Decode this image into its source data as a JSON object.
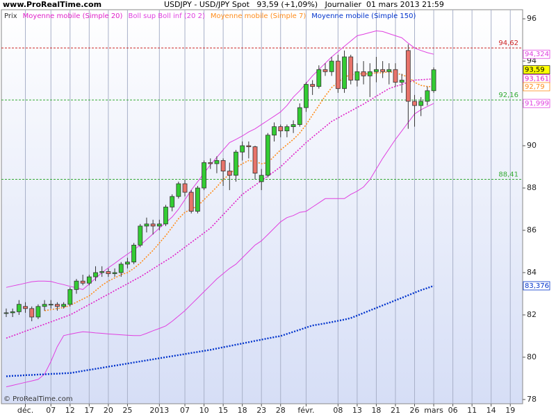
{
  "chart_data": {
    "type": "candlestick",
    "site": "www.ProRealTime.com",
    "title": "USDJPY - USD/JPY Spot   93,59 (+1,09%)   Journalier  01 mars 2013 21:59",
    "copyright": "© ProRealTime.com",
    "ylim": [
      77.8,
      96.43
    ],
    "yticks": [
      78,
      80,
      82,
      84,
      86,
      88,
      90,
      92,
      94,
      96
    ],
    "categories": [
      null,
      null,
      null,
      "déc.",
      null,
      null,
      null,
      "07",
      null,
      null,
      "12",
      null,
      null,
      "17",
      null,
      null,
      "20",
      null,
      null,
      "25",
      null,
      null,
      null,
      null,
      "2013",
      null,
      null,
      null,
      "07",
      null,
      null,
      "10",
      null,
      null,
      "15",
      null,
      null,
      "18",
      null,
      null,
      "23",
      null,
      null,
      "28",
      null,
      null,
      null,
      "févr.",
      null,
      null,
      null,
      null,
      "08",
      null,
      null,
      "13",
      null,
      null,
      "18",
      null,
      null,
      "21",
      null,
      null,
      "26",
      null,
      null,
      "mars",
      null,
      null,
      "06",
      null,
      null,
      "11",
      null,
      null,
      "14",
      null,
      null,
      "19"
    ],
    "candles": {
      "name": "Prix",
      "color": "#333333",
      "up_color": "#33cc33",
      "down_color": "#e8736a",
      "last_label": "93,59",
      "open": [
        82.1,
        82.1,
        82.15,
        82.4,
        82.3,
        81.9,
        82.4,
        82.5,
        82.5,
        82.4,
        82.5,
        83.2,
        83.6,
        83.5,
        83.8,
        84.0,
        84.05,
        83.95,
        84.0,
        84.4,
        84.5,
        85.3,
        86.2,
        86.3,
        86.2,
        86.3,
        87.1,
        87.6,
        88.2,
        87.8,
        86.9,
        88.0,
        89.2,
        89.15,
        89.3,
        88.8,
        88.6,
        89.7,
        90.0,
        89.95,
        88.3,
        88.6,
        90.5,
        90.9,
        90.7,
        90.9,
        91.0,
        91.8,
        92.9,
        92.8,
        93.6,
        93.5,
        94.0,
        92.7,
        94.2,
        93.1,
        93.5,
        93.3,
        93.5,
        93.6,
        93.5,
        93.6,
        93.0,
        94.5,
        92.1,
        91.9,
        92.1,
        92.6,
        null,
        null,
        null,
        null,
        null,
        null,
        null,
        null,
        null,
        null,
        null,
        null
      ],
      "high": [
        82.3,
        82.3,
        82.7,
        82.6,
        82.4,
        82.5,
        82.7,
        82.7,
        82.6,
        82.6,
        83.3,
        83.7,
        83.9,
        83.9,
        84.3,
        84.3,
        84.2,
        84.2,
        84.5,
        84.7,
        85.4,
        86.3,
        86.6,
        86.5,
        86.5,
        87.2,
        87.7,
        88.3,
        88.4,
        87.9,
        88.1,
        89.3,
        89.4,
        89.5,
        89.4,
        89.2,
        89.8,
        90.2,
        90.2,
        90.0,
        88.9,
        90.6,
        91.1,
        91.0,
        91.0,
        91.2,
        92.0,
        93.0,
        93.1,
        93.8,
        93.9,
        94.2,
        94.3,
        94.5,
        94.3,
        93.9,
        94.0,
        93.9,
        94.2,
        94.0,
        93.9,
        93.9,
        93.4,
        94.8,
        92.4,
        92.3,
        92.8,
        93.7,
        null,
        null,
        null,
        null,
        null,
        null,
        null,
        null,
        null,
        null,
        null,
        null
      ],
      "low": [
        81.9,
        81.9,
        82.0,
        82.1,
        81.7,
        81.8,
        82.2,
        82.3,
        82.2,
        82.3,
        82.4,
        83.0,
        83.4,
        83.4,
        83.6,
        83.8,
        83.8,
        83.8,
        83.8,
        84.2,
        84.4,
        85.2,
        85.9,
        85.8,
        86.0,
        86.2,
        86.9,
        87.5,
        87.6,
        86.8,
        86.8,
        87.9,
        88.9,
        88.7,
        88.1,
        87.9,
        88.3,
        89.3,
        89.4,
        88.4,
        87.9,
        88.5,
        90.2,
        90.4,
        90.4,
        90.6,
        90.9,
        91.6,
        92.4,
        92.7,
        93.3,
        93.3,
        92.5,
        92.5,
        92.9,
        92.8,
        92.9,
        92.3,
        93.0,
        93.2,
        92.9,
        92.8,
        92.5,
        90.8,
        90.9,
        91.4,
        91.9,
        92.5,
        null,
        null,
        null,
        null,
        null,
        null,
        null,
        null,
        null,
        null,
        null,
        null
      ],
      "close": [
        82.1,
        82.15,
        82.5,
        82.3,
        81.9,
        82.4,
        82.5,
        82.5,
        82.4,
        82.5,
        83.2,
        83.6,
        83.5,
        83.8,
        84.0,
        84.05,
        83.95,
        84.0,
        84.4,
        84.5,
        85.3,
        86.2,
        86.3,
        86.2,
        86.3,
        87.1,
        87.6,
        88.2,
        87.8,
        86.9,
        88.0,
        89.2,
        89.15,
        89.3,
        88.8,
        88.6,
        89.7,
        90.0,
        89.95,
        88.7,
        88.6,
        90.5,
        90.9,
        90.7,
        90.9,
        91.0,
        91.8,
        92.9,
        92.8,
        93.6,
        93.5,
        94.0,
        92.7,
        94.2,
        93.1,
        93.5,
        93.3,
        93.5,
        93.6,
        93.5,
        93.6,
        93.0,
        93.1,
        92.1,
        91.9,
        92.1,
        92.6,
        93.59,
        null,
        null,
        null,
        null,
        null,
        null,
        null,
        null,
        null,
        null,
        null,
        null
      ]
    },
    "series": [
      {
        "name": "Moyenne mobile (Simple 20)",
        "color": "#e020c8",
        "style": "dotted",
        "last_label": "93,161",
        "values": [
          80.9,
          81.01,
          81.12,
          81.23,
          81.34,
          81.45,
          81.56,
          81.67,
          81.78,
          81.89,
          82.0,
          82.16,
          82.33,
          82.49,
          82.65,
          82.82,
          82.98,
          83.15,
          83.31,
          83.47,
          83.64,
          83.8,
          83.99,
          84.18,
          84.37,
          84.56,
          84.75,
          84.98,
          85.2,
          85.43,
          85.65,
          85.88,
          86.1,
          86.42,
          86.74,
          87.06,
          87.38,
          87.7,
          87.92,
          88.13,
          88.35,
          88.57,
          88.78,
          89.0,
          89.29,
          89.58,
          89.86,
          90.15,
          90.4,
          90.65,
          90.9,
          91.15,
          91.31,
          91.48,
          91.64,
          91.81,
          91.97,
          92.15,
          92.34,
          92.52,
          92.7,
          92.8,
          92.9,
          93.0,
          93.1,
          93.12,
          93.14,
          93.161,
          null,
          null,
          null,
          null,
          null,
          null,
          null,
          null,
          null,
          null,
          null,
          null
        ]
      },
      {
        "name": "Boll sup Boll inf (20 2)",
        "color": "#e040e0",
        "style": "solid",
        "upper_label": "94,324",
        "lower_label": "91,999",
        "upper": [
          83.3,
          83.37,
          83.43,
          83.5,
          83.57,
          83.6,
          83.6,
          83.58,
          83.5,
          83.43,
          83.35,
          83.28,
          83.2,
          83.46,
          83.73,
          84.0,
          84.23,
          84.44,
          84.66,
          84.87,
          85.08,
          85.3,
          85.56,
          85.83,
          86.1,
          86.36,
          86.63,
          87.0,
          87.45,
          87.9,
          88.3,
          88.7,
          89.1,
          89.45,
          89.8,
          90.15,
          90.3,
          90.46,
          90.65,
          90.8,
          91.0,
          91.2,
          91.4,
          91.6,
          91.9,
          92.3,
          92.6,
          92.95,
          93.3,
          93.6,
          93.9,
          94.2,
          94.45,
          94.7,
          94.95,
          95.2,
          95.27,
          95.35,
          95.43,
          95.4,
          95.3,
          95.2,
          95.1,
          94.85,
          94.62,
          94.5,
          94.4,
          94.324,
          null,
          null,
          null,
          null,
          null,
          null,
          null,
          null,
          null,
          null,
          null,
          null
        ],
        "lower": [
          78.6,
          78.67,
          78.74,
          78.81,
          78.88,
          78.95,
          79.2,
          79.8,
          80.5,
          81.02,
          81.09,
          81.15,
          81.2,
          81.18,
          81.15,
          81.13,
          81.1,
          81.08,
          81.06,
          81.04,
          81.02,
          81.02,
          81.13,
          81.25,
          81.36,
          81.48,
          81.7,
          81.95,
          82.2,
          82.5,
          82.8,
          83.1,
          83.4,
          83.7,
          83.95,
          84.2,
          84.4,
          84.7,
          85.0,
          85.3,
          85.5,
          85.8,
          86.1,
          86.4,
          86.6,
          86.7,
          86.85,
          86.9,
          87.1,
          87.3,
          87.5,
          87.5,
          87.5,
          87.5,
          87.7,
          87.85,
          88.05,
          88.4,
          88.9,
          89.4,
          89.85,
          90.3,
          90.7,
          91.1,
          91.5,
          91.7,
          91.85,
          91.999,
          null,
          null,
          null,
          null,
          null,
          null,
          null,
          null,
          null,
          null,
          null,
          null
        ]
      },
      {
        "name": "Moyenne mobile (Simple 7)",
        "color": "#ff8c1a",
        "style": "dotted",
        "last_label": "92,79",
        "values": [
          null,
          null,
          null,
          null,
          null,
          null,
          82.2,
          82.25,
          82.3,
          82.35,
          82.45,
          82.6,
          82.75,
          82.9,
          83.15,
          83.4,
          83.6,
          83.75,
          83.9,
          84.0,
          84.2,
          84.45,
          84.75,
          85.05,
          85.4,
          85.75,
          86.15,
          86.55,
          86.85,
          87.0,
          87.15,
          87.45,
          87.75,
          88.05,
          88.4,
          88.65,
          88.95,
          89.15,
          89.3,
          89.25,
          89.15,
          89.2,
          89.5,
          89.8,
          90.05,
          90.3,
          90.6,
          91.0,
          91.45,
          91.9,
          92.35,
          92.75,
          93.0,
          93.25,
          93.35,
          93.4,
          93.4,
          93.4,
          93.45,
          93.45,
          93.5,
          93.45,
          93.35,
          93.25,
          93.0,
          92.85,
          92.8,
          92.79,
          null,
          null,
          null,
          null,
          null,
          null,
          null,
          null,
          null,
          null,
          null,
          null
        ]
      },
      {
        "name": "Moyenne mobile (Simple 150)",
        "color": "#0033cc",
        "style": "dotted-thick",
        "last_label": "83,376",
        "values": [
          79.1,
          79.12,
          79.13,
          79.15,
          79.16,
          79.18,
          79.19,
          79.21,
          79.22,
          79.24,
          79.25,
          79.3,
          79.35,
          79.4,
          79.45,
          79.5,
          79.55,
          79.6,
          79.65,
          79.7,
          79.75,
          79.8,
          79.85,
          79.9,
          79.95,
          80.0,
          80.05,
          80.1,
          80.15,
          80.2,
          80.25,
          80.3,
          80.35,
          80.41,
          80.47,
          80.53,
          80.59,
          80.65,
          80.71,
          80.77,
          80.83,
          80.89,
          80.95,
          81.0,
          81.1,
          81.2,
          81.3,
          81.4,
          81.5,
          81.55,
          81.6,
          81.66,
          81.72,
          81.78,
          81.85,
          81.97,
          82.09,
          82.21,
          82.33,
          82.45,
          82.57,
          82.69,
          82.81,
          82.93,
          83.05,
          83.17,
          83.27,
          83.376,
          null,
          null,
          null,
          null,
          null,
          null,
          null,
          null,
          null,
          null,
          null,
          null
        ]
      }
    ],
    "levels": [
      {
        "value": 94.62,
        "label": "94,62",
        "color": "#cc2222"
      },
      {
        "value": 92.16,
        "label": "92,16",
        "color": "#33aa33"
      },
      {
        "value": 88.41,
        "label": "88,41",
        "color": "#33aa33"
      }
    ]
  }
}
